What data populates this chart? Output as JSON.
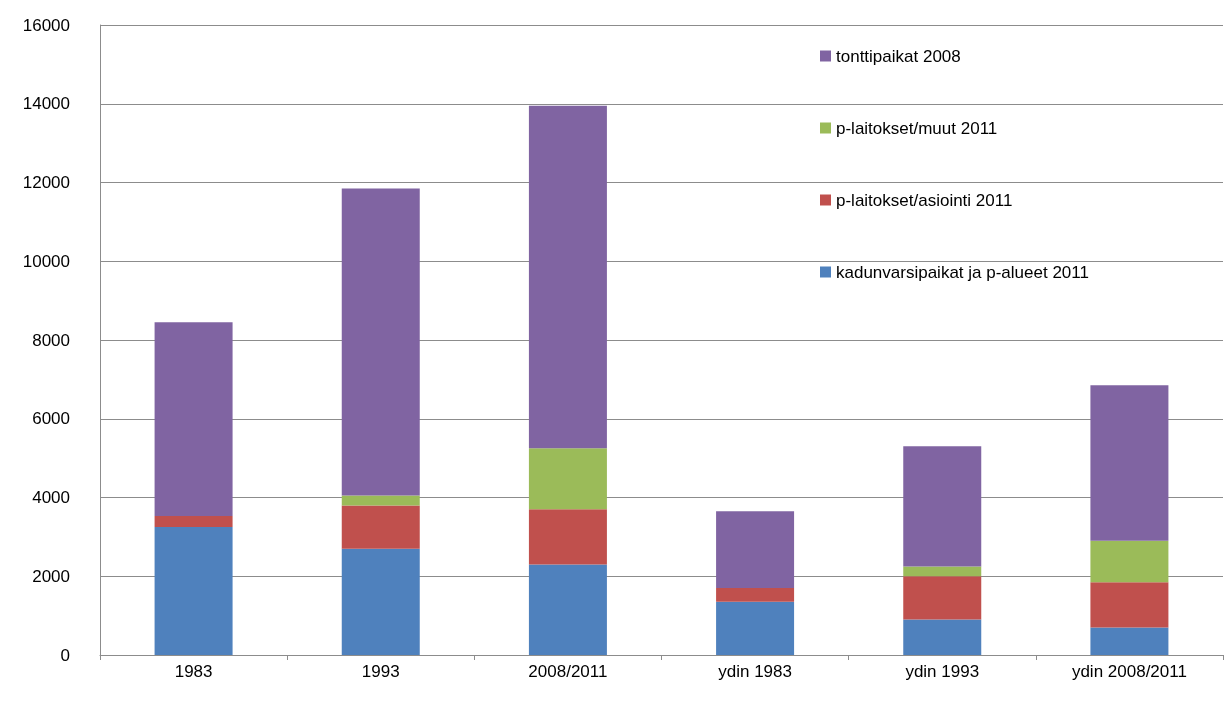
{
  "chart_data": {
    "type": "bar",
    "stacked": true,
    "categories": [
      "1983",
      "1993",
      "2008/2011",
      "ydin 1983",
      "ydin 1993",
      "ydin 2008/2011"
    ],
    "series": [
      {
        "name": "kadunvarsipaikat ja p-alueet 2011",
        "color": "#4f81bd",
        "values": [
          3250,
          2700,
          2300,
          1350,
          900,
          700
        ]
      },
      {
        "name": "p-laitokset/asiointi 2011",
        "color": "#c0504d",
        "values": [
          280,
          1100,
          1400,
          350,
          1100,
          1150
        ]
      },
      {
        "name": "p-laitokset/muut 2011",
        "color": "#9bbb59",
        "values": [
          0,
          250,
          1550,
          0,
          250,
          1050
        ]
      },
      {
        "name": "tonttipaikat 2008",
        "color": "#8064a2",
        "values": [
          4920,
          7800,
          8700,
          1950,
          3050,
          3950
        ]
      }
    ],
    "ylim": [
      0,
      16000
    ],
    "yticks": [
      0,
      2000,
      4000,
      6000,
      8000,
      10000,
      12000,
      14000,
      16000
    ],
    "grid": "y",
    "legend": "top right"
  }
}
